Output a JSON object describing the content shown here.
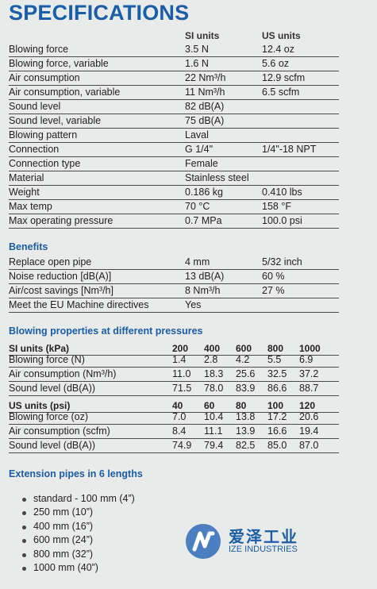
{
  "title": "SPECIFICATIONS",
  "columns": {
    "si": "SI units",
    "us": "US units"
  },
  "specs": [
    {
      "label": "Blowing force",
      "si": "3.5 N",
      "us": "12.4 oz"
    },
    {
      "label": "Blowing force, variable",
      "si": "1.6 N",
      "us": "5.6 oz"
    },
    {
      "label": "Air consumption",
      "si": "22 Nm³/h",
      "us": "12.9 scfm"
    },
    {
      "label": "Air consumption, variable",
      "si": "11 Nm³/h",
      "us": "6.5 scfm"
    },
    {
      "label": "Sound level",
      "si": "82 dB(A)",
      "us": ""
    },
    {
      "label": "Sound level, variable",
      "si": "75 dB(A)",
      "us": ""
    },
    {
      "label": "Blowing pattern",
      "si": "Laval",
      "us": ""
    },
    {
      "label": "Connection",
      "si": "G 1/4\"",
      "us": "1/4\"-18 NPT"
    },
    {
      "label": "Connection type",
      "si": "Female",
      "us": ""
    },
    {
      "label": "Material",
      "si": "Stainless steel",
      "us": ""
    },
    {
      "label": "Weight",
      "si": "0.186 kg",
      "us": "0.410 lbs"
    },
    {
      "label": "Max temp",
      "si": "70 °C",
      "us": "158 °F"
    },
    {
      "label": "Max operating pressure",
      "si": "0.7 MPa",
      "us": "100.0 psi"
    }
  ],
  "benefits": {
    "heading": "Benefits",
    "rows": [
      {
        "label": "Replace open pipe",
        "si": "4 mm",
        "us": "5/32 inch"
      },
      {
        "label": "Noise reduction [dB(A)]",
        "si": "13 dB(A)",
        "us": "60 %"
      },
      {
        "label": "Air/cost savings [Nm³/h]",
        "si": "8 Nm³/h",
        "us": "27 %"
      },
      {
        "label": "Meet the EU Machine directives",
        "si": "Yes",
        "us": ""
      }
    ]
  },
  "blowing": {
    "heading": "Blowing properties at different pressures",
    "si": {
      "header": "SI units (kPa)",
      "pressures": [
        "200",
        "400",
        "600",
        "800",
        "1000"
      ],
      "rows": [
        {
          "label": "Blowing force (N)",
          "values": [
            "1.4",
            "2.8",
            "4.2",
            "5.5",
            "6.9"
          ]
        },
        {
          "label": "Air consumption (Nm³/h)",
          "values": [
            "11.0",
            "18.3",
            "25.6",
            "32.5",
            "37.2"
          ]
        },
        {
          "label": "Sound level (dB(A))",
          "values": [
            "71.5",
            "78.0",
            "83.9",
            "86.6",
            "88.7"
          ]
        }
      ]
    },
    "us": {
      "header": "US units (psi)",
      "pressures": [
        "40",
        "60",
        "80",
        "100",
        "120"
      ],
      "rows": [
        {
          "label": "Blowing force (oz)",
          "values": [
            "7.0",
            "10.4",
            "13.8",
            "17.2",
            "20.6"
          ]
        },
        {
          "label": "Air consumption (scfm)",
          "values": [
            "8.4",
            "11.1",
            "13.9",
            "16.6",
            "19.4"
          ]
        },
        {
          "label": "Sound level (dB(A))",
          "values": [
            "74.9",
            "79.4",
            "82.5",
            "85.0",
            "87.0"
          ]
        }
      ]
    }
  },
  "extension": {
    "heading": "Extension pipes in 6 lengths",
    "items": [
      "standard - 100 mm (4”)",
      "250 mm (10”)",
      "400 mm (16”)",
      "600 mm (24”)",
      "800 mm (32”)",
      "1000 mm (40”)"
    ]
  },
  "logo": {
    "cn": "爱泽工业",
    "en": "IZE INDUSTRIES",
    "color": "#1a5ea8"
  }
}
